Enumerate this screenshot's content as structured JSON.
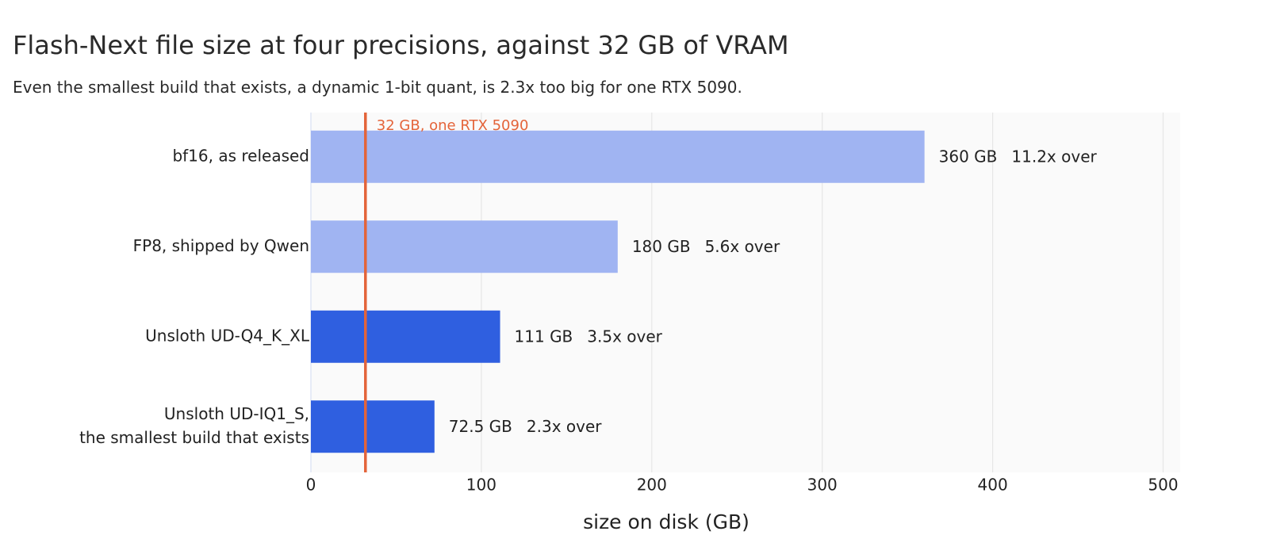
{
  "header": {
    "title": "Flash-Next file size at four precisions, against 32 GB of VRAM",
    "subtitle": "Even the smallest build that exists, a dynamic 1-bit quant, is 2.3x too big for one RTX 5090."
  },
  "chart_data": {
    "type": "bar",
    "orientation": "horizontal",
    "categories": [
      [
        "bf16, as released"
      ],
      [
        "FP8, shipped by Qwen"
      ],
      [
        "Unsloth UD-Q4_K_XL"
      ],
      [
        "Unsloth UD-IQ1_S,",
        "the smallest build that exists"
      ]
    ],
    "values": [
      360,
      180,
      111,
      72.5
    ],
    "value_labels": [
      "360 GB",
      "180 GB",
      "111 GB",
      "72.5 GB"
    ],
    "ratio_labels": [
      "11.2x over",
      "5.6x over",
      "3.5x over",
      "2.3x over"
    ],
    "bar_colors": [
      "#a0b4f2",
      "#a0b4f2",
      "#2f5fe0",
      "#2f5fe0"
    ],
    "xlabel": "size on disk (GB)",
    "xlim": [
      0,
      510
    ],
    "xticks": [
      0,
      100,
      200,
      300,
      400,
      500
    ],
    "grid": true,
    "reference_line": {
      "value": 32,
      "label": "32 GB, one RTX 5090",
      "color": "#e4643a"
    },
    "plot_background": "#fafafa",
    "grid_color": "#e6e6e6"
  }
}
